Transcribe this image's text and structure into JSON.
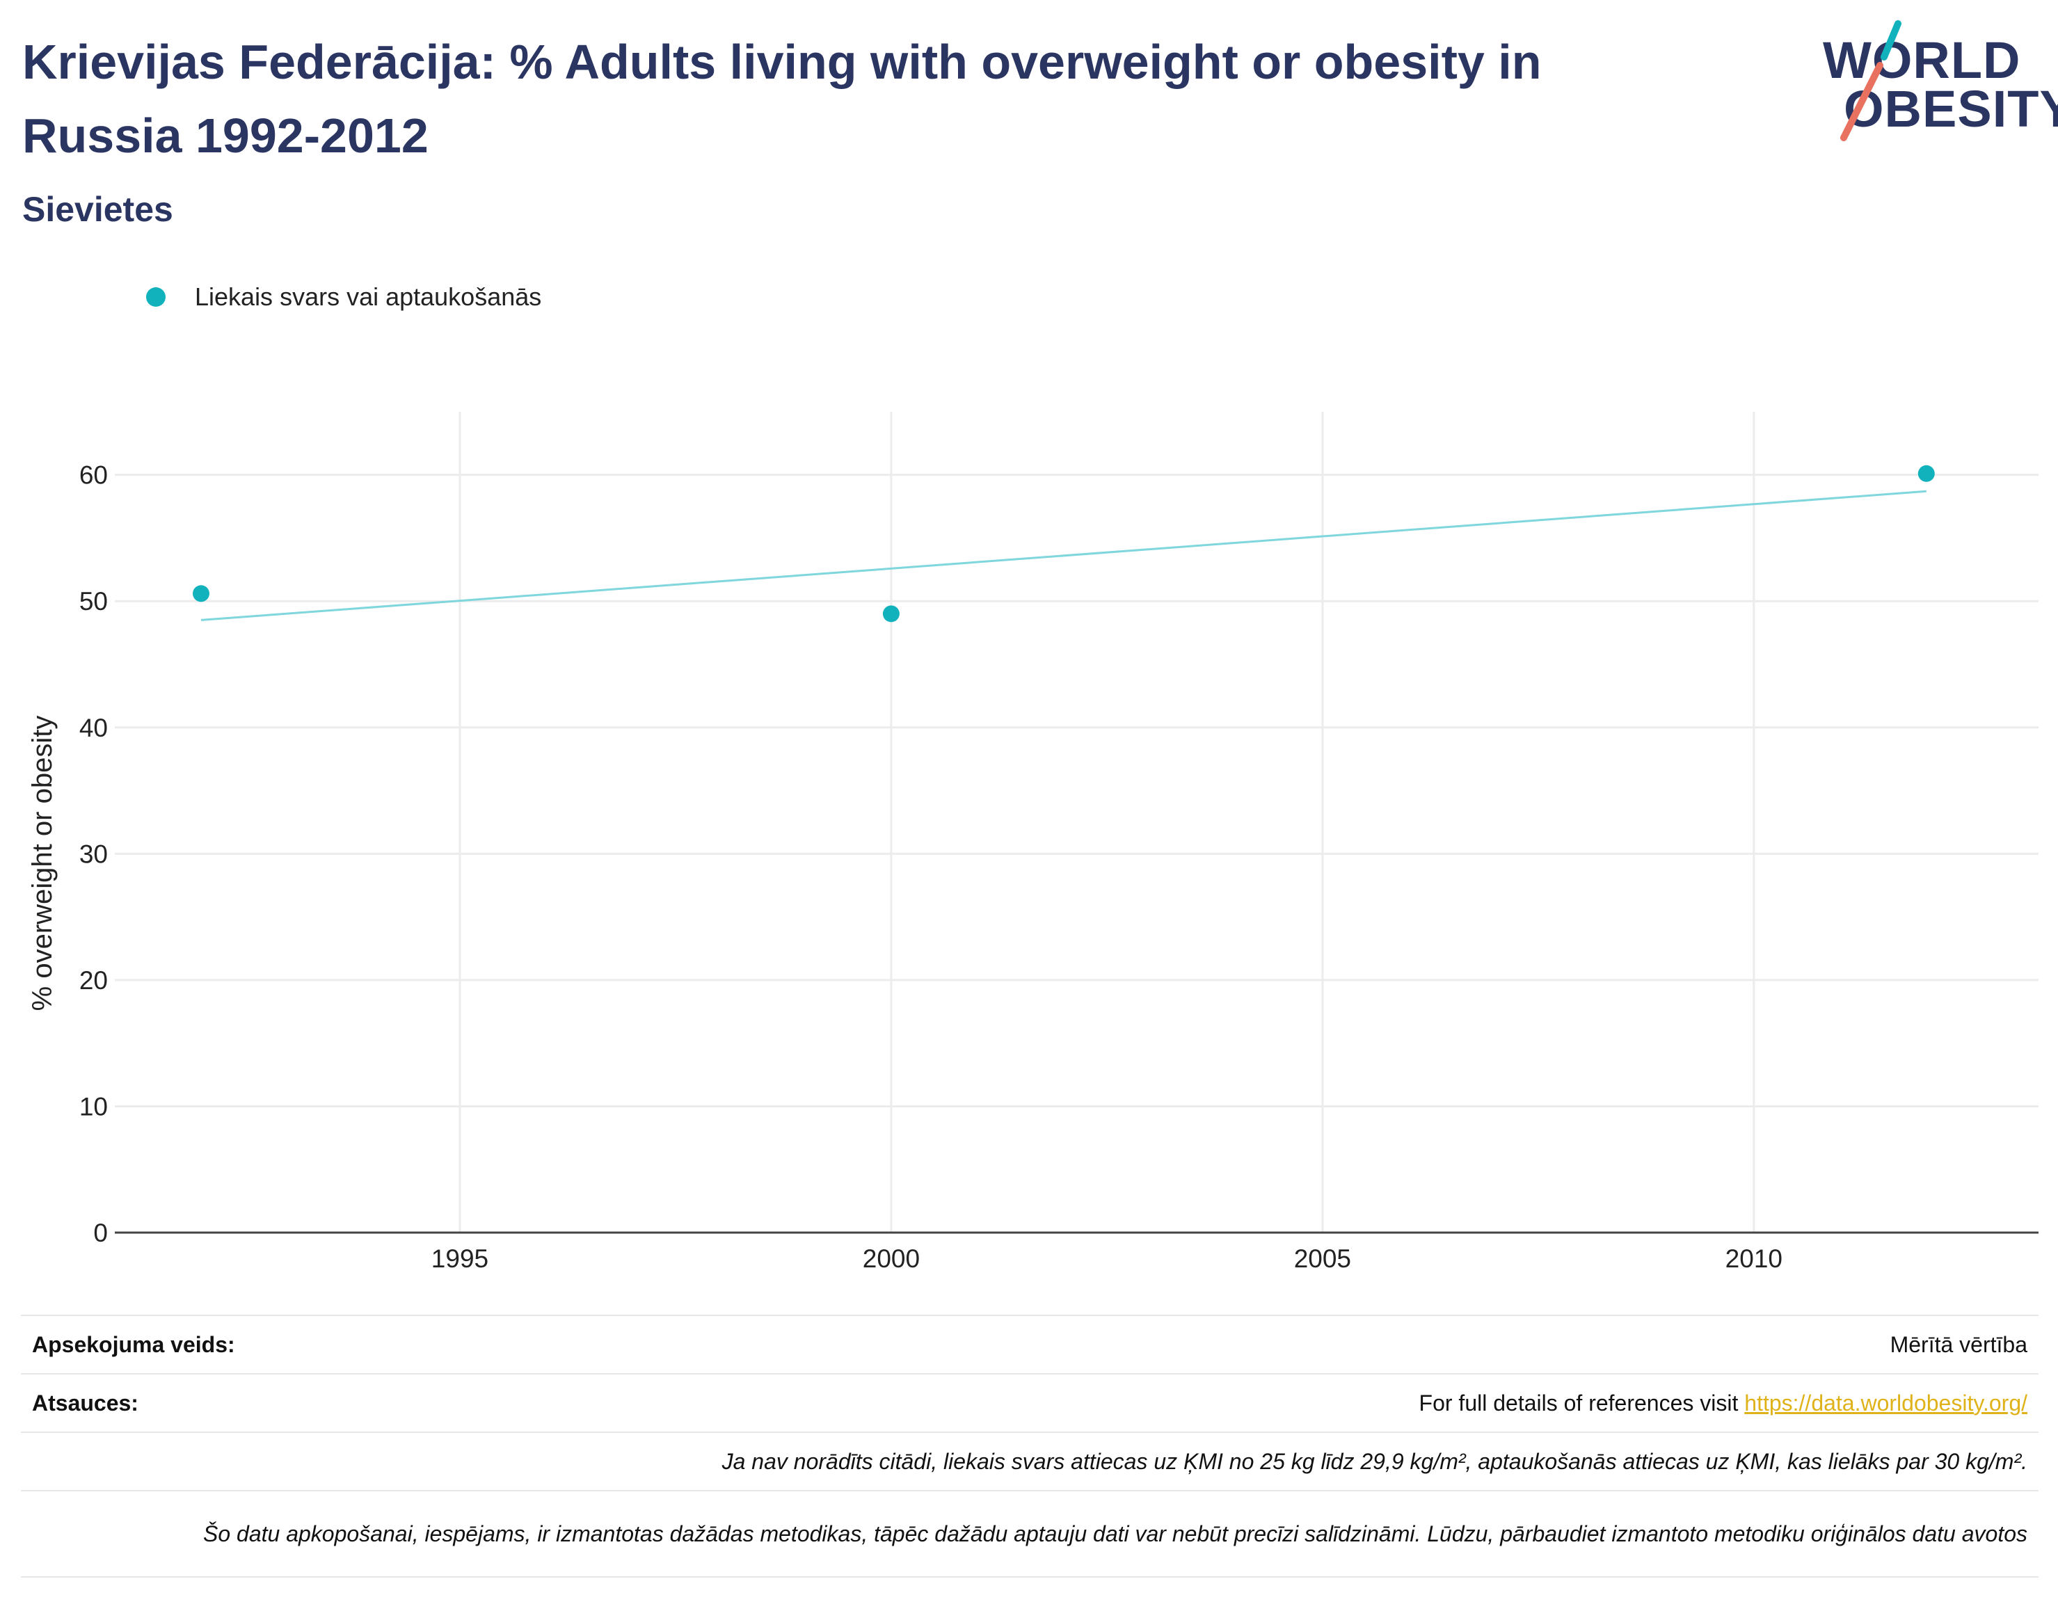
{
  "header": {
    "title": "Krievijas Federācija: % Adults living with overweight or obesity in Russia 1992-2012",
    "subtitle": "Sievietes"
  },
  "logo": {
    "line1": "WORLD",
    "line2": "OBESITY"
  },
  "colors": {
    "title": "#2b3561",
    "series": "#12b2bd",
    "trend": "#7fd6dc",
    "link": "#e0b21a",
    "logo_teal": "#12b2bd",
    "logo_coral": "#e8725f"
  },
  "chart_data": {
    "type": "scatter",
    "title": "",
    "xlabel": "",
    "ylabel": "% overweight or obesity",
    "xlim": [
      1991,
      2013.3
    ],
    "ylim": [
      0,
      64
    ],
    "x_ticks": [
      1995,
      2000,
      2005,
      2010
    ],
    "y_ticks": [
      0,
      10,
      20,
      30,
      40,
      50,
      60
    ],
    "grid": true,
    "legend_position": "top-left",
    "series": [
      {
        "name": "Liekais svars vai aptaukošanās",
        "x": [
          1992,
          2000,
          2012
        ],
        "y": [
          50.6,
          49,
          60.1
        ]
      }
    ],
    "trendline": {
      "x": [
        1992,
        2012
      ],
      "y": [
        48.5,
        58.7
      ]
    }
  },
  "footer": {
    "survey_label": "Apsekojuma veids:",
    "survey_value": "Mērītā vērtība",
    "refs_label": "Atsauces:",
    "refs_text": "For full details of references visit ",
    "refs_link": "https://data.worldobesity.org/",
    "note1": "Ja nav norādīts citādi, liekais svars attiecas uz ĶMI no 25 kg līdz 29,9 kg/m², aptaukošanās attiecas uz ĶMI, kas lielāks par 30 kg/m².",
    "note2": "Šo datu apkopošanai, iespējams, ir izmantotas dažādas metodikas, tāpēc dažādu aptauju dati var nebūt precīzi salīdzināmi. Lūdzu, pārbaudiet izmantoto metodiku oriģinālos datu avotos"
  }
}
